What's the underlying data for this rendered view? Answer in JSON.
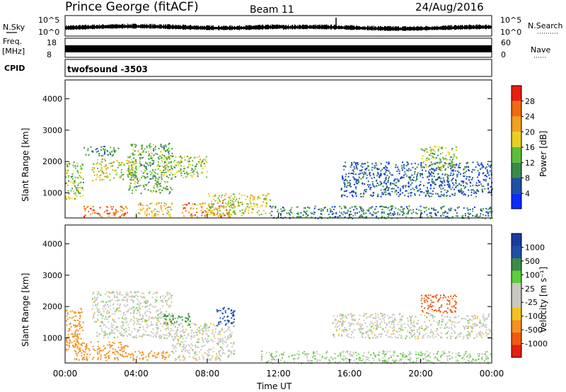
{
  "header": {
    "station": "Prince George (fitACF)",
    "beam": "Beam 11",
    "date": "24/Aug/2016"
  },
  "top_panels": {
    "nsky_label": "N.Sky",
    "nsky_ticks": [
      "10^5",
      "10^0"
    ],
    "nsearch_label": "N.Search",
    "nsearch_ticks": [
      "10^5",
      "10^0"
    ],
    "freq_label_1": "Freq.",
    "freq_label_2": "[MHz]",
    "freq_ticks": [
      "18",
      "8"
    ],
    "nave_label": "Nave",
    "nave_ticks": [
      "60",
      "0"
    ],
    "cpid_label": "CPID",
    "cpid_value": "twofsound -3503"
  },
  "colors": {
    "power_scale": [
      "#0a2dff",
      "#1f4fa8",
      "#3a8a4a",
      "#5bbf3a",
      "#e8d020",
      "#f2a020",
      "#f06a10",
      "#e81e0e"
    ],
    "velocity_scale": [
      "#e81e0e",
      "#f05a10",
      "#f59020",
      "#f5c020",
      "#c8c8c0",
      "#c8c8c0",
      "#5bcf3a",
      "#3a8a4a",
      "#1f4fa8",
      "#1a3aa0"
    ]
  },
  "chart_data": [
    {
      "type": "heatmap",
      "panel": "power",
      "ylabel": "Slant Range [km]",
      "xlabel": "",
      "yticks": [
        "1000",
        "2000",
        "3000",
        "4000"
      ],
      "ylim": [
        200,
        4600
      ],
      "colorbar_label": "Power [dB]",
      "colorbar_ticks": [
        "4",
        "8",
        "12",
        "16",
        "20",
        "24",
        "28"
      ],
      "clim": [
        0,
        30
      ],
      "regions": [
        {
          "x": [
            0.0,
            1.0
          ],
          "y": [
            800,
            2000
          ],
          "v": 14
        },
        {
          "x": [
            1.0,
            3.5
          ],
          "y": [
            250,
            600
          ],
          "v": 24
        },
        {
          "x": [
            1.0,
            3.0
          ],
          "y": [
            2200,
            2500
          ],
          "v": 10
        },
        {
          "x": [
            1.5,
            4.0
          ],
          "y": [
            1400,
            2100
          ],
          "v": 16
        },
        {
          "x": [
            3.5,
            6.0
          ],
          "y": [
            1000,
            2600
          ],
          "v": 12
        },
        {
          "x": [
            4.0,
            6.0
          ],
          "y": [
            250,
            700
          ],
          "v": 18
        },
        {
          "x": [
            5.5,
            8.0
          ],
          "y": [
            1500,
            2200
          ],
          "v": 14
        },
        {
          "x": [
            6.5,
            9.5
          ],
          "y": [
            250,
            700
          ],
          "v": 22
        },
        {
          "x": [
            8.0,
            11.5
          ],
          "y": [
            300,
            1000
          ],
          "v": 16
        },
        {
          "x": [
            11.5,
            24.0
          ],
          "y": [
            200,
            600
          ],
          "v": 8
        },
        {
          "x": [
            15.5,
            24.0
          ],
          "y": [
            900,
            2000
          ],
          "v": 6
        },
        {
          "x": [
            20.0,
            22.0
          ],
          "y": [
            1800,
            2500
          ],
          "v": 14
        }
      ]
    },
    {
      "type": "heatmap",
      "panel": "velocity",
      "ylabel": "Slant Range [km]",
      "xlabel": "Time UT",
      "xticks": [
        "00:00",
        "04:00",
        "08:00",
        "12:00",
        "16:00",
        "20:00",
        "00:00"
      ],
      "xlim": [
        0,
        24
      ],
      "yticks": [
        "1000",
        "2000",
        "3000",
        "4000"
      ],
      "ylim": [
        200,
        4600
      ],
      "colorbar_label": "Velocity [m s⁻¹]",
      "colorbar_ticks": [
        "-1000",
        "-500",
        "-100",
        "-25",
        "25",
        "100",
        "500",
        "1000"
      ],
      "regions": [
        {
          "x": [
            0.0,
            1.0
          ],
          "y": [
            600,
            2000
          ],
          "v": -300
        },
        {
          "x": [
            0.5,
            3.5
          ],
          "y": [
            300,
            900
          ],
          "v": -150
        },
        {
          "x": [
            1.5,
            6.0
          ],
          "y": [
            1000,
            2500
          ],
          "v": 0
        },
        {
          "x": [
            3.5,
            6.0
          ],
          "y": [
            300,
            600
          ],
          "v": -150
        },
        {
          "x": [
            5.5,
            7.0
          ],
          "y": [
            1400,
            1800
          ],
          "v": 120
        },
        {
          "x": [
            6.0,
            9.5
          ],
          "y": [
            300,
            1500
          ],
          "v": 0
        },
        {
          "x": [
            8.5,
            9.5
          ],
          "y": [
            1400,
            2000
          ],
          "v": 600
        },
        {
          "x": [
            11.0,
            24.0
          ],
          "y": [
            200,
            600
          ],
          "v": 20
        },
        {
          "x": [
            15.0,
            24.0
          ],
          "y": [
            1000,
            1800
          ],
          "v": 0
        },
        {
          "x": [
            20.0,
            22.0
          ],
          "y": [
            1800,
            2400
          ],
          "v": -700
        }
      ]
    }
  ]
}
